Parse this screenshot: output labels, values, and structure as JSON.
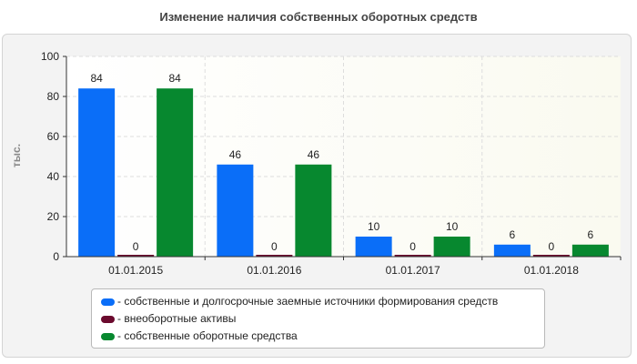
{
  "chart_data": {
    "type": "bar",
    "title": "Изменение наличия собственных оборотных средств",
    "ylabel": "тыс.",
    "xlabel": "",
    "ylim": [
      0,
      100
    ],
    "yticks": [
      0,
      20,
      40,
      60,
      80,
      100
    ],
    "grid": true,
    "legend_position": "bottom",
    "categories": [
      "01.01.2015",
      "01.01.2016",
      "01.01.2017",
      "01.01.2018"
    ],
    "series": [
      {
        "name": "- собственные и долгосрочные заемные источники формирования средств",
        "color": "#0a6ef8",
        "values": [
          84,
          46,
          10,
          6
        ]
      },
      {
        "name": "- внеоборотные активы",
        "color": "#6b0a2e",
        "values": [
          0,
          0,
          0,
          0
        ]
      },
      {
        "name": "- собственные оборотные средства",
        "color": "#07882f",
        "values": [
          84,
          46,
          10,
          6
        ]
      }
    ]
  }
}
